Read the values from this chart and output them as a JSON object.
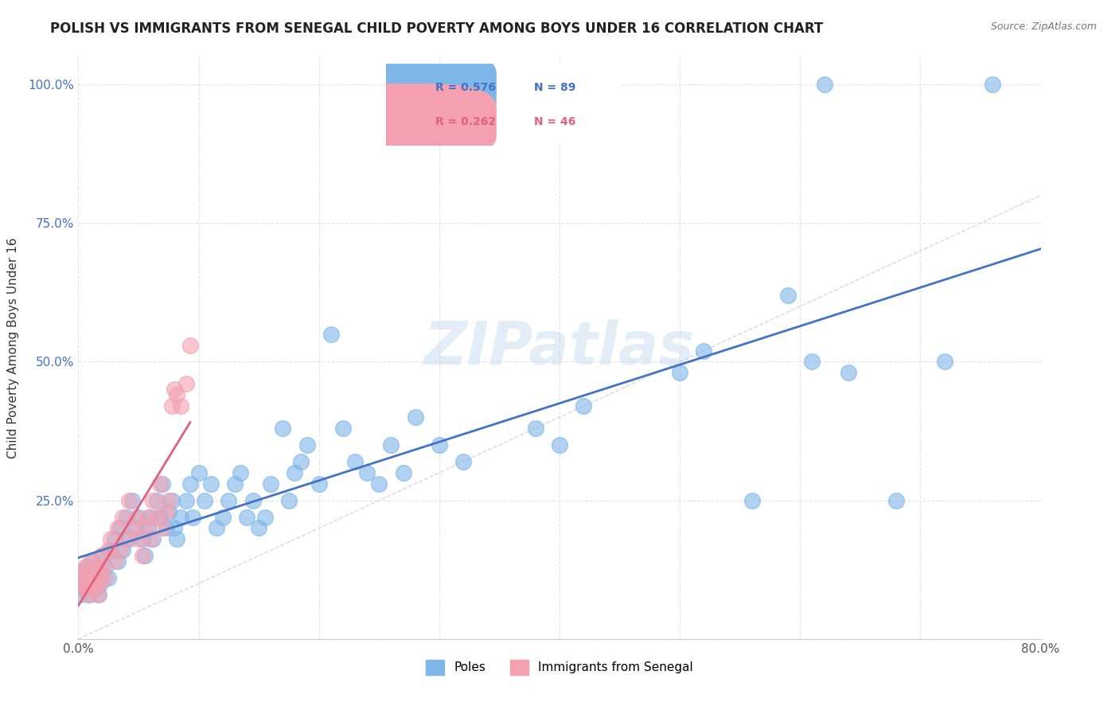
{
  "title": "POLISH VS IMMIGRANTS FROM SENEGAL CHILD POVERTY AMONG BOYS UNDER 16 CORRELATION CHART",
  "source": "Source: ZipAtlas.com",
  "ylabel": "Child Poverty Among Boys Under 16",
  "xlim": [
    0.0,
    0.8
  ],
  "ylim": [
    0.0,
    1.05
  ],
  "ytick_positions": [
    0.0,
    0.25,
    0.5,
    0.75,
    1.0
  ],
  "ytick_labels": [
    "",
    "25.0%",
    "50.0%",
    "75.0%",
    "100.0%"
  ],
  "grid_color": "#dddddd",
  "watermark": "ZIPatlas",
  "poles_R": 0.576,
  "poles_N": 89,
  "senegal_R": 0.262,
  "senegal_N": 46,
  "poles_color": "#7EB6E8",
  "senegal_color": "#F4A0B0",
  "poles_line_color": "#4472C4",
  "senegal_line_color": "#E06080",
  "diagonal_color": "#C8C8C8",
  "poles_x": [
    0.002,
    0.003,
    0.004,
    0.005,
    0.006,
    0.007,
    0.008,
    0.009,
    0.01,
    0.012,
    0.013,
    0.014,
    0.015,
    0.016,
    0.017,
    0.018,
    0.019,
    0.02,
    0.022,
    0.025,
    0.027,
    0.03,
    0.033,
    0.035,
    0.037,
    0.04,
    0.042,
    0.045,
    0.048,
    0.05,
    0.053,
    0.055,
    0.058,
    0.06,
    0.062,
    0.065,
    0.068,
    0.07,
    0.073,
    0.075,
    0.078,
    0.08,
    0.082,
    0.085,
    0.09,
    0.093,
    0.095,
    0.1,
    0.105,
    0.11,
    0.115,
    0.12,
    0.125,
    0.13,
    0.135,
    0.14,
    0.145,
    0.15,
    0.155,
    0.16,
    0.17,
    0.175,
    0.18,
    0.185,
    0.19,
    0.2,
    0.21,
    0.22,
    0.23,
    0.24,
    0.25,
    0.26,
    0.27,
    0.28,
    0.3,
    0.32,
    0.38,
    0.4,
    0.42,
    0.5,
    0.52,
    0.56,
    0.59,
    0.61,
    0.62,
    0.64,
    0.68,
    0.72,
    0.76
  ],
  "poles_y": [
    0.08,
    0.1,
    0.12,
    0.09,
    0.11,
    0.13,
    0.1,
    0.08,
    0.12,
    0.14,
    0.1,
    0.09,
    0.11,
    0.13,
    0.08,
    0.1,
    0.12,
    0.15,
    0.13,
    0.11,
    0.16,
    0.18,
    0.14,
    0.2,
    0.16,
    0.22,
    0.18,
    0.25,
    0.2,
    0.22,
    0.18,
    0.15,
    0.2,
    0.22,
    0.18,
    0.25,
    0.22,
    0.28,
    0.2,
    0.23,
    0.25,
    0.2,
    0.18,
    0.22,
    0.25,
    0.28,
    0.22,
    0.3,
    0.25,
    0.28,
    0.2,
    0.22,
    0.25,
    0.28,
    0.3,
    0.22,
    0.25,
    0.2,
    0.22,
    0.28,
    0.38,
    0.25,
    0.3,
    0.32,
    0.35,
    0.28,
    0.55,
    0.38,
    0.32,
    0.3,
    0.28,
    0.35,
    0.3,
    0.4,
    0.35,
    0.32,
    0.38,
    0.35,
    0.42,
    0.48,
    0.52,
    0.25,
    0.62,
    0.5,
    1.0,
    0.48,
    0.25,
    0.5,
    1.0
  ],
  "senegal_x": [
    0.002,
    0.003,
    0.004,
    0.005,
    0.006,
    0.007,
    0.008,
    0.009,
    0.01,
    0.012,
    0.013,
    0.014,
    0.015,
    0.016,
    0.017,
    0.018,
    0.019,
    0.02,
    0.022,
    0.025,
    0.027,
    0.03,
    0.033,
    0.035,
    0.037,
    0.04,
    0.042,
    0.045,
    0.048,
    0.05,
    0.053,
    0.055,
    0.058,
    0.06,
    0.062,
    0.065,
    0.068,
    0.07,
    0.073,
    0.075,
    0.078,
    0.08,
    0.082,
    0.085,
    0.09,
    0.093
  ],
  "senegal_y": [
    0.1,
    0.12,
    0.09,
    0.11,
    0.13,
    0.1,
    0.08,
    0.12,
    0.14,
    0.1,
    0.09,
    0.11,
    0.13,
    0.08,
    0.1,
    0.12,
    0.15,
    0.13,
    0.11,
    0.16,
    0.18,
    0.14,
    0.2,
    0.16,
    0.22,
    0.18,
    0.25,
    0.2,
    0.22,
    0.18,
    0.15,
    0.2,
    0.22,
    0.18,
    0.25,
    0.22,
    0.28,
    0.2,
    0.23,
    0.25,
    0.42,
    0.45,
    0.44,
    0.42,
    0.46,
    0.53
  ]
}
